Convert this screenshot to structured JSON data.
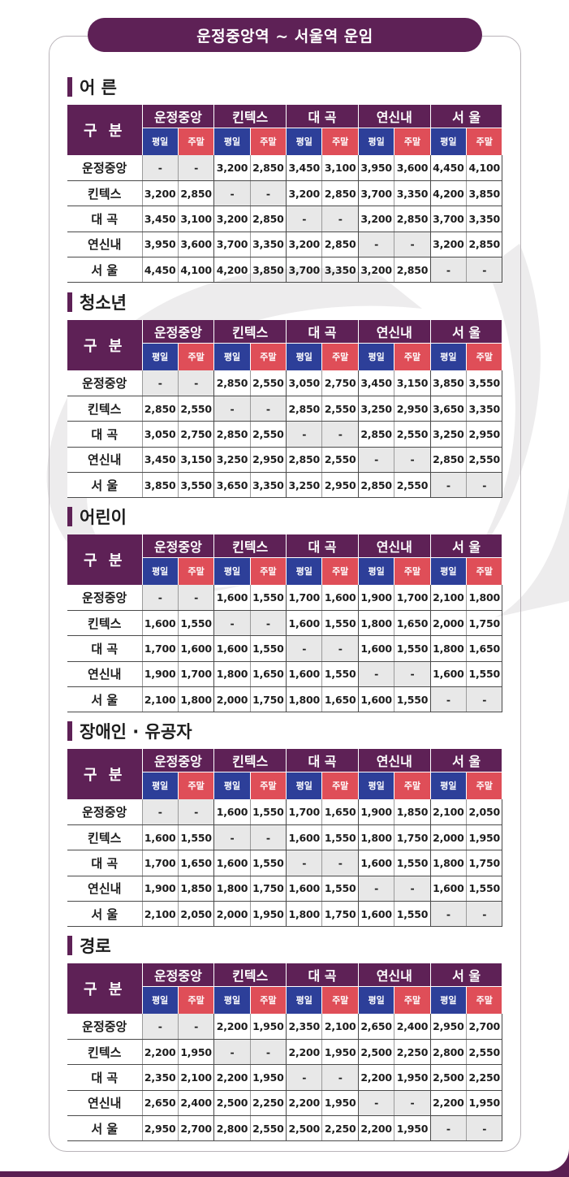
{
  "title": "운정중앙역 ~ 서울역 운임",
  "header": {
    "gubun": "구 분",
    "stations": [
      "운정중앙",
      "킨텍스",
      "대 곡",
      "연신내",
      "서 울"
    ],
    "weekday": "평일",
    "weekend": "주말"
  },
  "row_labels": [
    "운정중앙",
    "킨텍스",
    "대 곡",
    "연신내",
    "서 울"
  ],
  "sections": [
    {
      "title": "어 른",
      "rows": [
        [
          "-",
          "-",
          "3,200",
          "2,850",
          "3,450",
          "3,100",
          "3,950",
          "3,600",
          "4,450",
          "4,100"
        ],
        [
          "3,200",
          "2,850",
          "-",
          "-",
          "3,200",
          "2,850",
          "3,700",
          "3,350",
          "4,200",
          "3,850"
        ],
        [
          "3,450",
          "3,100",
          "3,200",
          "2,850",
          "-",
          "-",
          "3,200",
          "2,850",
          "3,700",
          "3,350"
        ],
        [
          "3,950",
          "3,600",
          "3,700",
          "3,350",
          "3,200",
          "2,850",
          "-",
          "-",
          "3,200",
          "2,850"
        ],
        [
          "4,450",
          "4,100",
          "4,200",
          "3,850",
          "3,700",
          "3,350",
          "3,200",
          "2,850",
          "-",
          "-"
        ]
      ]
    },
    {
      "title": "청소년",
      "rows": [
        [
          "-",
          "-",
          "2,850",
          "2,550",
          "3,050",
          "2,750",
          "3,450",
          "3,150",
          "3,850",
          "3,550"
        ],
        [
          "2,850",
          "2,550",
          "-",
          "-",
          "2,850",
          "2,550",
          "3,250",
          "2,950",
          "3,650",
          "3,350"
        ],
        [
          "3,050",
          "2,750",
          "2,850",
          "2,550",
          "-",
          "-",
          "2,850",
          "2,550",
          "3,250",
          "2,950"
        ],
        [
          "3,450",
          "3,150",
          "3,250",
          "2,950",
          "2,850",
          "2,550",
          "-",
          "-",
          "2,850",
          "2,550"
        ],
        [
          "3,850",
          "3,550",
          "3,650",
          "3,350",
          "3,250",
          "2,950",
          "2,850",
          "2,550",
          "-",
          "-"
        ]
      ]
    },
    {
      "title": "어린이",
      "rows": [
        [
          "-",
          "-",
          "1,600",
          "1,550",
          "1,700",
          "1,600",
          "1,900",
          "1,700",
          "2,100",
          "1,800"
        ],
        [
          "1,600",
          "1,550",
          "-",
          "-",
          "1,600",
          "1,550",
          "1,800",
          "1,650",
          "2,000",
          "1,750"
        ],
        [
          "1,700",
          "1,600",
          "1,600",
          "1,550",
          "-",
          "-",
          "1,600",
          "1,550",
          "1,800",
          "1,650"
        ],
        [
          "1,900",
          "1,700",
          "1,800",
          "1,650",
          "1,600",
          "1,550",
          "-",
          "-",
          "1,600",
          "1,550"
        ],
        [
          "2,100",
          "1,800",
          "2,000",
          "1,750",
          "1,800",
          "1,650",
          "1,600",
          "1,550",
          "-",
          "-"
        ]
      ]
    },
    {
      "title": "장애인 · 유공자",
      "rows": [
        [
          "-",
          "-",
          "1,600",
          "1,550",
          "1,700",
          "1,650",
          "1,900",
          "1,850",
          "2,100",
          "2,050"
        ],
        [
          "1,600",
          "1,550",
          "-",
          "-",
          "1,600",
          "1,550",
          "1,800",
          "1,750",
          "2,000",
          "1,950"
        ],
        [
          "1,700",
          "1,650",
          "1,600",
          "1,550",
          "-",
          "-",
          "1,600",
          "1,550",
          "1,800",
          "1,750"
        ],
        [
          "1,900",
          "1,850",
          "1,800",
          "1,750",
          "1,600",
          "1,550",
          "-",
          "-",
          "1,600",
          "1,550"
        ],
        [
          "2,100",
          "2,050",
          "2,000",
          "1,950",
          "1,800",
          "1,750",
          "1,600",
          "1,550",
          "-",
          "-"
        ]
      ]
    },
    {
      "title": "경로",
      "rows": [
        [
          "-",
          "-",
          "2,200",
          "1,950",
          "2,350",
          "2,100",
          "2,650",
          "2,400",
          "2,950",
          "2,700"
        ],
        [
          "2,200",
          "1,950",
          "-",
          "-",
          "2,200",
          "1,950",
          "2,500",
          "2,250",
          "2,800",
          "2,550"
        ],
        [
          "2,350",
          "2,100",
          "2,200",
          "1,950",
          "-",
          "-",
          "2,200",
          "1,950",
          "2,500",
          "2,250"
        ],
        [
          "2,650",
          "2,400",
          "2,500",
          "2,250",
          "2,200",
          "1,950",
          "-",
          "-",
          "2,200",
          "1,950"
        ],
        [
          "2,950",
          "2,700",
          "2,800",
          "2,550",
          "2,500",
          "2,250",
          "2,200",
          "1,950",
          "-",
          "-"
        ]
      ]
    }
  ],
  "colors": {
    "brand_purple": "#5e2156",
    "weekday_blue": "#2d3f99",
    "weekend_red": "#df4e58",
    "diagonal_grey": "#e8e8e8"
  }
}
